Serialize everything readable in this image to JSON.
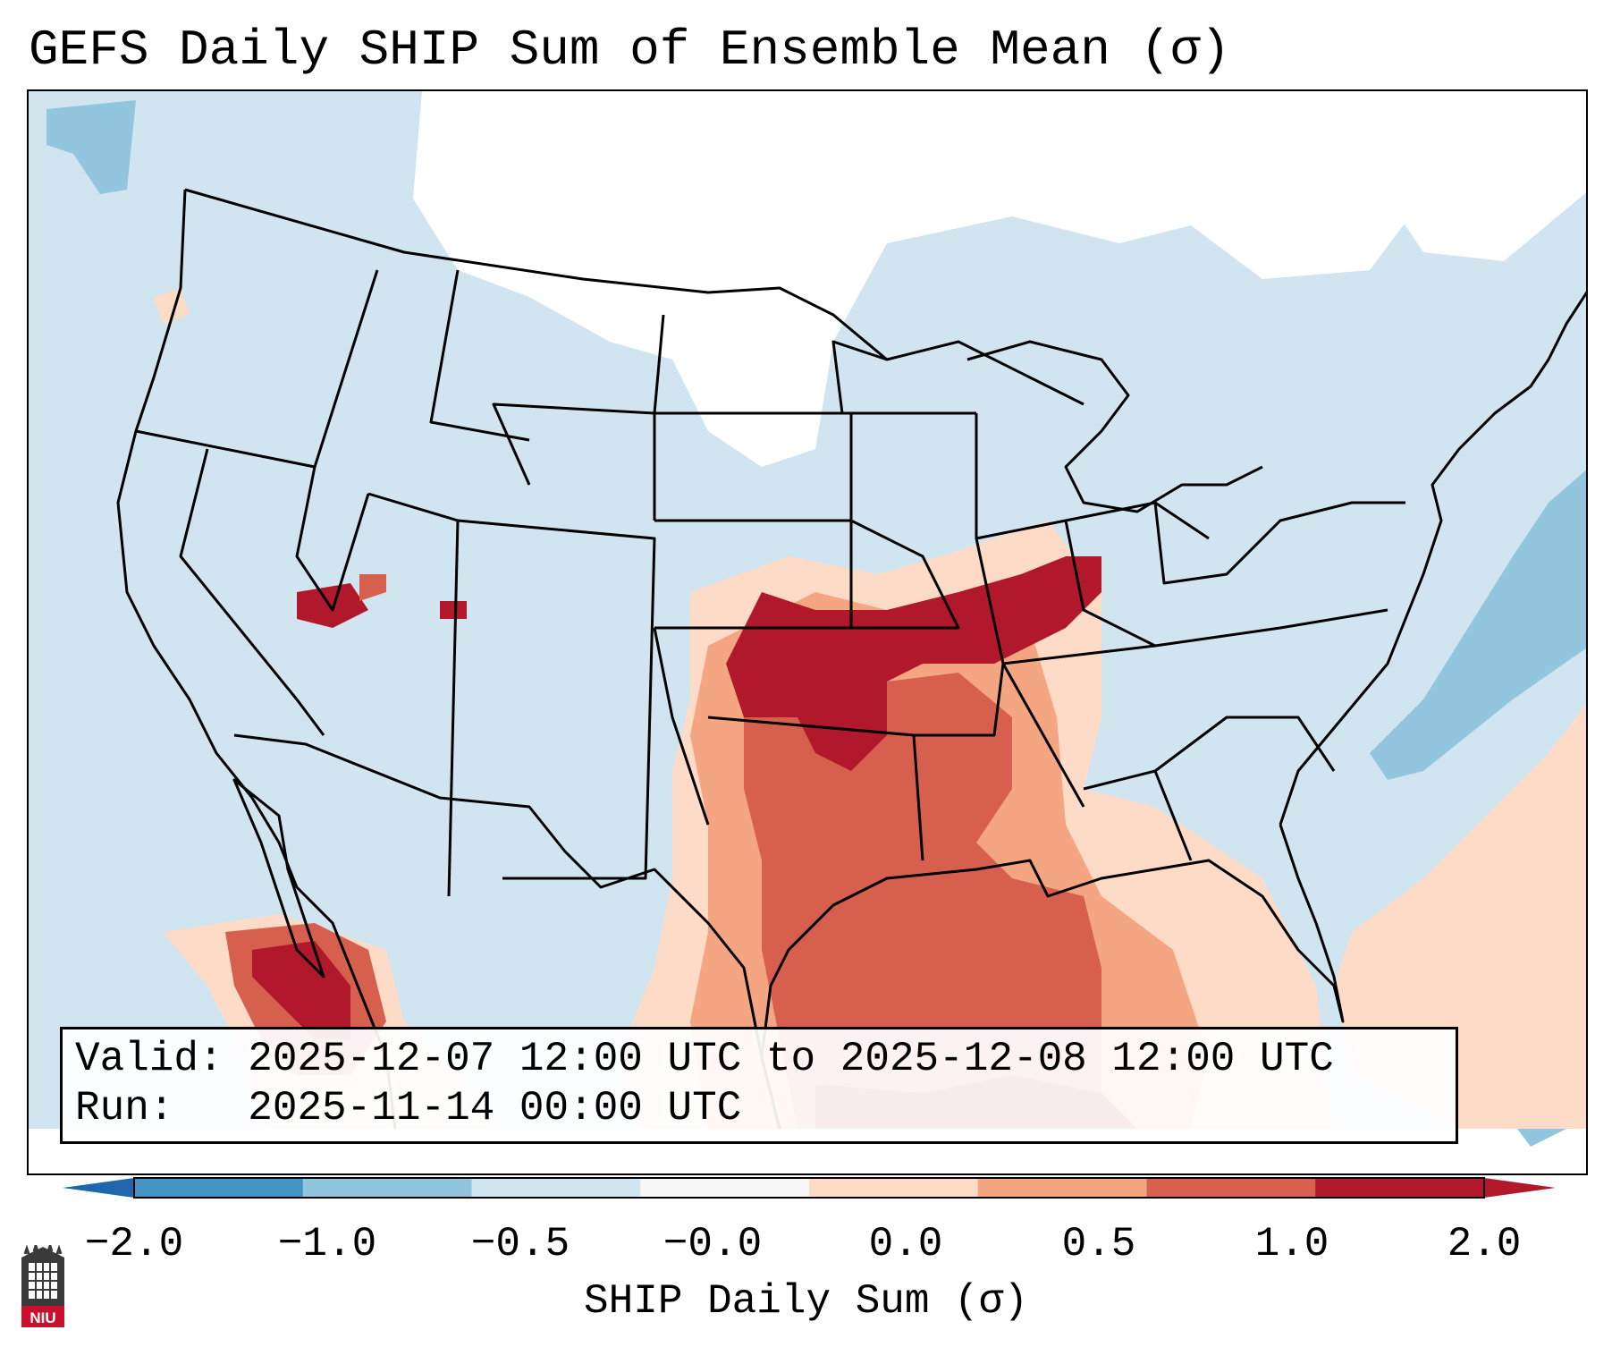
{
  "title": "GEFS Daily SHIP Sum of Ensemble Mean (σ)",
  "info": {
    "valid_line": "Valid: 2025-12-07 12:00 UTC to 2025-12-08 12:00 UTC",
    "run_line": "Run:   2025-11-14 00:00 UTC"
  },
  "colorbar": {
    "label": "SHIP Daily Sum (σ)",
    "ticks": [
      "−2.0",
      "−1.0",
      "−0.5",
      "−0.0",
      "0.0",
      "0.5",
      "1.0",
      "2.0"
    ],
    "colors": [
      "#4393c3",
      "#92c5de",
      "#d1e5f0",
      "#f7f7f7",
      "#fddbc7",
      "#f4a582",
      "#d6604d",
      "#b2182b"
    ],
    "extend_low_color": "#2166ac",
    "extend_high_color": "#b2182b"
  },
  "logo": {
    "text": "NIU"
  },
  "palette": {
    "sea_low": "#d1e5f0",
    "none": "#ffffff",
    "light_blue": "#92c5de",
    "light_red": "#fddbc7",
    "salmon": "#f4a582",
    "red": "#d6604d",
    "dark_red": "#b2182b"
  }
}
